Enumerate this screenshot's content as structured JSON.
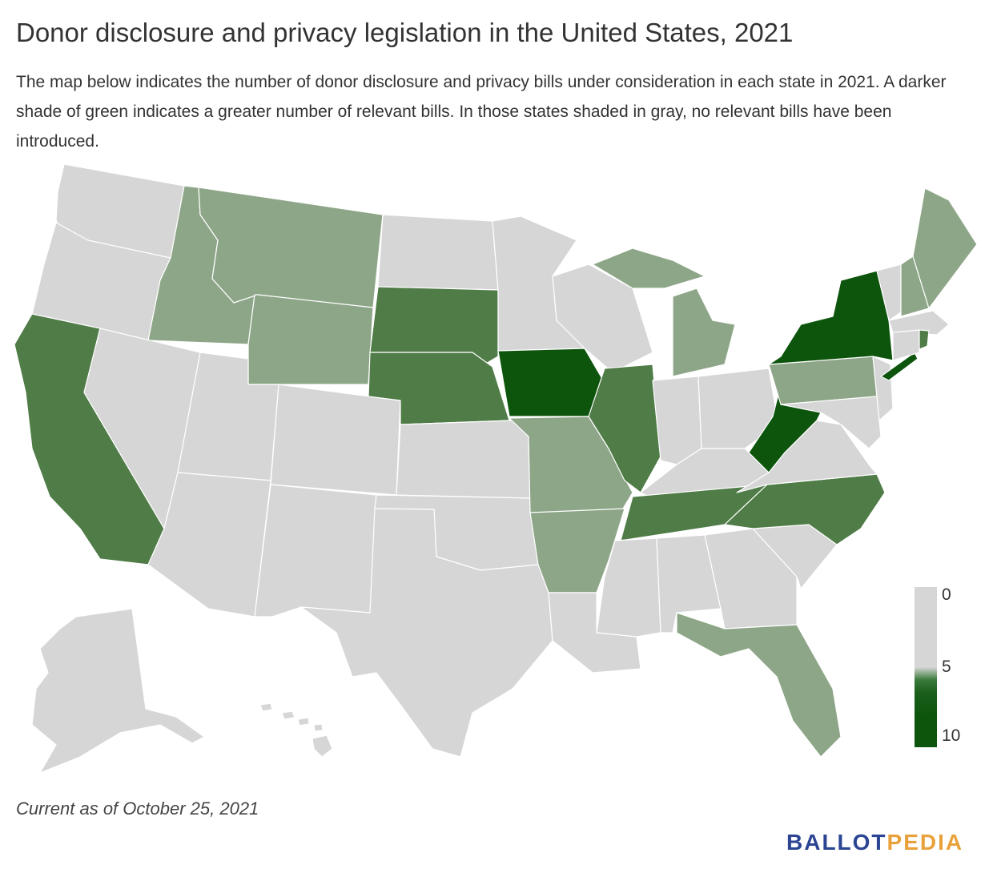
{
  "header": {
    "title": "Donor disclosure and privacy legislation in the United States, 2021",
    "description": "The map below indicates the number of donor disclosure and privacy bills under consideration in each state in 2021. A darker shade of green indicates a greater number of relevant bills. In those states shaded in gray, no relevant bills have been introduced."
  },
  "legend": {
    "min_label": "0",
    "mid_label": "5",
    "max_label": "10"
  },
  "colors": {
    "none": "#d6d6d6",
    "light": "#8ea688",
    "medium": "#4f7c47",
    "dark": "#0d550d",
    "brand_blue": "#2b4593",
    "brand_orange": "#e9a23b"
  },
  "footer": {
    "note": "Current as of October 25, 2021",
    "brand_part1": "BALLOT",
    "brand_part2": "PEDIA"
  }
}
